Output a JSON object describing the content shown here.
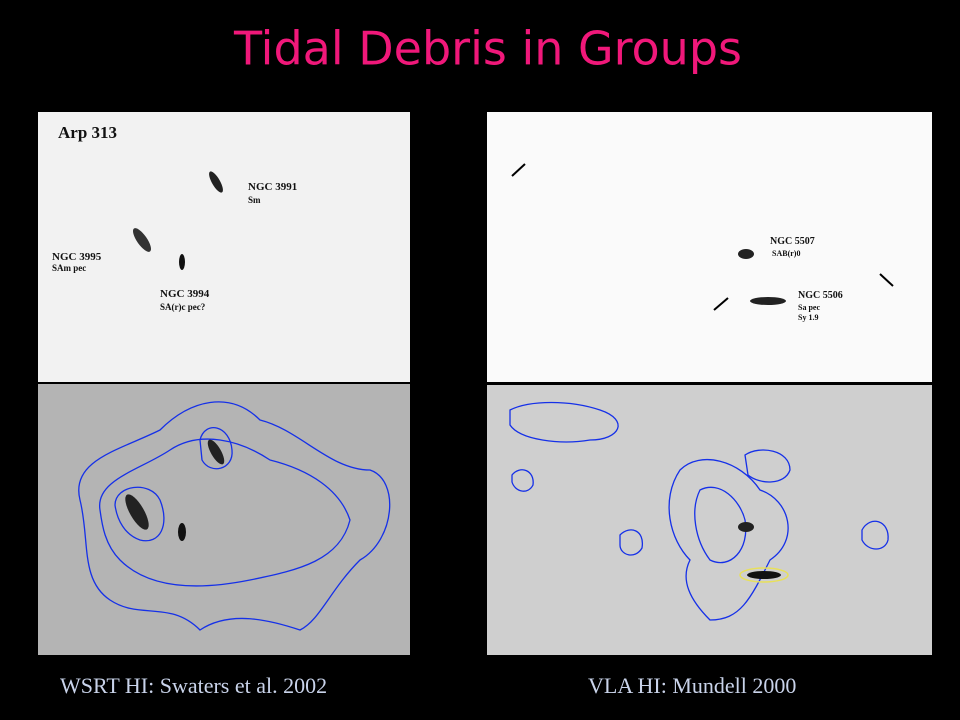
{
  "slide": {
    "title": "Tidal Debris in Groups",
    "left_panel": {
      "labels": [
        "Arp 313",
        "NGC 3991",
        "Sm",
        "NGC 3995",
        "SAm pec",
        "NGC 3994",
        "SA(r)c pec?"
      ],
      "caption": "WSRT HI: Swaters et al. 2002"
    },
    "right_panel": {
      "labels": [
        "NGC 5507",
        "SAB(r)0",
        "NGC 5506",
        "Sa pec",
        "Sy 1.9"
      ],
      "caption": "VLA HI: Mundell 2000"
    }
  }
}
